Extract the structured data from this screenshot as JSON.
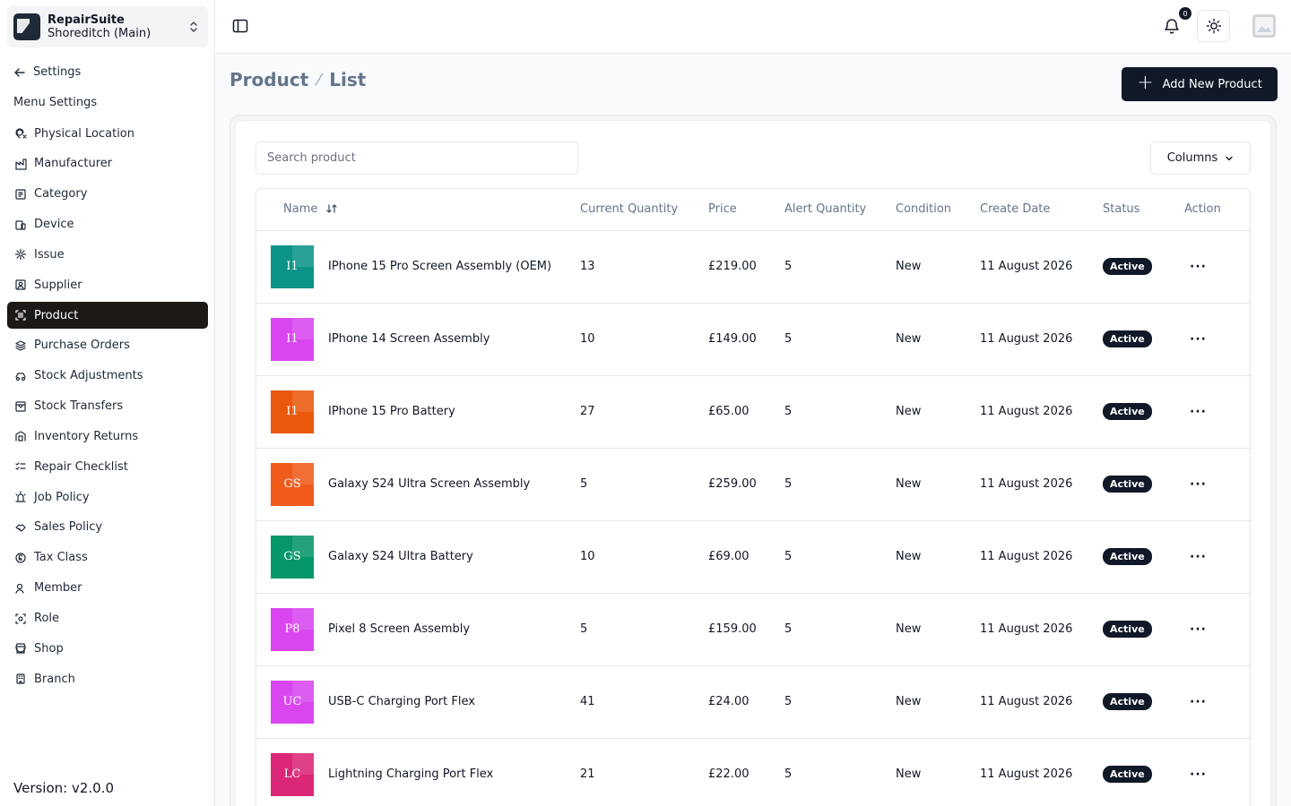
{
  "sidebar": {
    "store_name": "RepairSuite",
    "branch_name": "Shoreditch (Main)",
    "back_label": "Settings",
    "menu_heading": "Menu Settings",
    "items": [
      {
        "label": "Physical Location",
        "icon": "map-pin-icon"
      },
      {
        "label": "Manufacturer",
        "icon": "factory-icon"
      },
      {
        "label": "Category",
        "icon": "category-icon"
      },
      {
        "label": "Device",
        "icon": "device-icon"
      },
      {
        "label": "Issue",
        "icon": "gear-icon"
      },
      {
        "label": "Supplier",
        "icon": "supplier-icon"
      },
      {
        "label": "Product",
        "icon": "scan-icon",
        "active": true
      },
      {
        "label": "Purchase Orders",
        "icon": "layers-icon"
      },
      {
        "label": "Stock Adjustments",
        "icon": "adjust-icon"
      },
      {
        "label": "Stock Transfers",
        "icon": "transfer-icon"
      },
      {
        "label": "Inventory Returns",
        "icon": "warehouse-icon"
      },
      {
        "label": "Repair Checklist",
        "icon": "checklist-icon"
      },
      {
        "label": "Job Policy",
        "icon": "siren-icon"
      },
      {
        "label": "Sales Policy",
        "icon": "handshake-icon"
      },
      {
        "label": "Tax Class",
        "icon": "currency-icon"
      },
      {
        "label": "Member",
        "icon": "user-icon"
      },
      {
        "label": "Role",
        "icon": "role-icon"
      },
      {
        "label": "Shop",
        "icon": "store-icon"
      },
      {
        "label": "Branch",
        "icon": "building-icon"
      }
    ],
    "version": "Version: v2.0.0"
  },
  "header": {
    "notification_count": "0"
  },
  "page": {
    "breadcrumb_root": "Product",
    "breadcrumb_current": "List",
    "add_button_label": "Add New Product",
    "search_placeholder": "Search product",
    "columns_button_label": "Columns"
  },
  "table": {
    "columns": [
      "Name",
      "Current Quantity",
      "Price",
      "Alert Quantity",
      "Condition",
      "Create Date",
      "Status",
      "Action"
    ],
    "rows": [
      {
        "initials": "I1",
        "color": "#0d9488",
        "name": "IPhone 15 Pro Screen Assembly (OEM)",
        "quantity": "13",
        "price": "£219.00",
        "alert": "5",
        "condition": "New",
        "date": "11 August 2026",
        "status": "Active"
      },
      {
        "initials": "I1",
        "color": "#d946ef",
        "name": "IPhone 14 Screen Assembly",
        "quantity": "10",
        "price": "£149.00",
        "alert": "5",
        "condition": "New",
        "date": "11 August 2026",
        "status": "Active"
      },
      {
        "initials": "I1",
        "color": "#ea580c",
        "name": "IPhone 15 Pro Battery",
        "quantity": "27",
        "price": "£65.00",
        "alert": "5",
        "condition": "New",
        "date": "11 August 2026",
        "status": "Active"
      },
      {
        "initials": "GS",
        "color": "#f05a1a",
        "name": "Galaxy S24 Ultra Screen Assembly",
        "quantity": "5",
        "price": "£259.00",
        "alert": "5",
        "condition": "New",
        "date": "11 August 2026",
        "status": "Active"
      },
      {
        "initials": "GS",
        "color": "#059669",
        "name": "Galaxy S24 Ultra Battery",
        "quantity": "10",
        "price": "£69.00",
        "alert": "5",
        "condition": "New",
        "date": "11 August 2026",
        "status": "Active"
      },
      {
        "initials": "P8",
        "color": "#d946ef",
        "name": "Pixel 8 Screen Assembly",
        "quantity": "5",
        "price": "£159.00",
        "alert": "5",
        "condition": "New",
        "date": "11 August 2026",
        "status": "Active"
      },
      {
        "initials": "UC",
        "color": "#d946ef",
        "name": "USB-C Charging Port Flex",
        "quantity": "41",
        "price": "£24.00",
        "alert": "5",
        "condition": "New",
        "date": "11 August 2026",
        "status": "Active"
      },
      {
        "initials": "LC",
        "color": "#db2777",
        "name": "Lightning Charging Port Flex",
        "quantity": "21",
        "price": "£22.00",
        "alert": "5",
        "condition": "New",
        "date": "11 August 2026",
        "status": "Active"
      }
    ]
  }
}
